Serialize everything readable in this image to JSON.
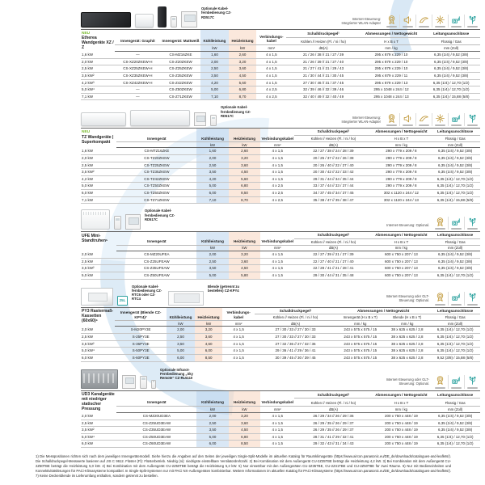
{
  "h": {
    "innengeraet": "Innengerät",
    "innengeraet_graphit": "Innengerät: Graphit",
    "innengeraet_mattweiss": "Innengerät: Mattweiß",
    "innengeraet_blende": "Innengerät (Blende CZ-KPY4)⁷",
    "kuehl": "Kühl­leistung",
    "heiz": "Heiz­leistung",
    "verb": "Verbindungs­kabel",
    "schall": "Schalldruckpegel¹",
    "schall_sub": "Kühlen // Heizen (Fl. / ni / ho)",
    "abmess": "Abmessungen / Nettogewicht",
    "hbt": "H x B x T",
    "abmess_innen": "Innengerät (H x B x T)",
    "abmess_blende": "Blende (H x B x T)",
    "leitung": "Leitungsanschlüsse",
    "fluessig": "Flüssig / Gas",
    "kw": "kW",
    "mm2": "mm²",
    "dba": "dB(A)",
    "mmkg": "mm / kg",
    "mmzoll": "mm (Zoll)"
  },
  "sections": [
    {
      "badge": "NEU",
      "title": "Etherea Wandgeräte XZ / Z",
      "photo_caption": "Optionale Kabel­fernbedienung CZ-RD517C",
      "control_note": "Internet-Steuerung: Integrierter WLAN-Adapter",
      "rows": [
        [
          "1,6 kW",
          "—",
          "CS-MZ16ZKE",
          "1,60",
          "2,60",
          "4 x 1,5",
          "21 / 26 / 38 // 21 / 27 / 39",
          "295 x 879 x 229 / 10",
          "6,35 (1/4) / 9,52 (3/8)"
        ],
        [
          "2,0 kW",
          "CS-XZ20ZKEW-H",
          "CS-Z20ZKEW",
          "2,00",
          "3,20",
          "4 x 1,5",
          "21 / 26 / 39 // 21 / 27 / 40",
          "295 x 879 x 229 / 10",
          "6,35 (1/4) / 9,52 (3/8)"
        ],
        [
          "2,5 kW",
          "CS-XZ25ZKEW-H",
          "CS-Z25ZKEW",
          "2,50",
          "3,60",
          "4 x 1,5",
          "21 / 27 / 41 // 21 / 29 / 43",
          "295 x 879 x 229 / 10",
          "6,35 (1/4) / 9,52 (3/8)"
        ],
        [
          "3,5 kW²",
          "CS-XZ35ZKEW-H",
          "CS-Z35ZKEW",
          "3,50",
          "4,50",
          "4 x 1,5",
          "21 / 30 / 44 // 21 / 30 / 45",
          "295 x 879 x 229 / 11",
          "6,35 (1/4) / 9,52 (3/8)"
        ],
        [
          "4,2 kW³",
          "CS-XZ42ZKEW-H",
          "CS-Z42ZKEW",
          "4,20",
          "5,60",
          "4 x 1,5",
          "27 / 30 / 46 // 31 / 37 / 45",
          "295 x 879 x 229 / 13",
          "6,35 (1/4) / 12,70 (1/2)"
        ],
        [
          "5,0 kW⁴",
          "—",
          "CS-Z50ZKEW",
          "5,00",
          "6,80",
          "4 x 2,5",
          "32 / 39 / 46 // 32 / 39 / 46",
          "295 x 1048 x 244 / 12",
          "6,35 (1/4) / 12,70 (1/2)"
        ],
        [
          "7,1 kW",
          "—",
          "CS-Z71ZKEW",
          "7,10",
          "8,70",
          "4 x 2,5",
          "32 / 40 / 49 // 32 / 40 / 49",
          "295 x 1048 x 244 / 13",
          "6,35 (1/4) / 15,88 (5/8)"
        ]
      ]
    },
    {
      "badge": "NEU",
      "title": "TZ Wandgeräte | Super­kompakt",
      "photo_caption": "Optionale Kabel­fernbedienung CZ-RD517C",
      "control_note": "Internet-Steuerung: Integrierter WLAN-Adapter",
      "rows": [
        [
          "1,6 kW",
          "CS-MTZ16ZKE",
          "1,60",
          "2,60",
          "4 x 1,5",
          "22 / 27 / 38 // 24 / 28 / 39",
          "290 x 779 x 209 / 8",
          "6,35 (1/4) / 9,52 (3/8)"
        ],
        [
          "2,0 kW",
          "CS-TZ20ZKEW",
          "2,00",
          "3,20",
          "4 x 1,5",
          "20 / 25 / 37 // 22 / 26 / 38",
          "290 x 779 x 209 / 8",
          "6,35 (1/4) / 9,52 (3/8)"
        ],
        [
          "2,5 kW",
          "CS-TZ25ZKEW",
          "2,50",
          "3,60",
          "4 x 1,5",
          "20 / 26 / 40 // 22 / 27 / 40",
          "290 x 779 x 209 / 8",
          "6,35 (1/4) / 9,52 (3/8)"
        ],
        [
          "3,5 kW²",
          "CS-TZ35ZKEW",
          "3,50",
          "4,50",
          "4 x 1,5",
          "20 / 30 / 42 // 22 / 33 / 42",
          "290 x 779 x 209 / 8",
          "6,35 (1/4) / 9,52 (3/8)"
        ],
        [
          "4,2 kW",
          "CS-TZ42ZKEW",
          "4,20",
          "5,60",
          "4 x 1,5",
          "29 / 31 / 44 // 34 / 35 / 44",
          "290 x 779 x 209 / 8",
          "6,35 (1/4) / 12,70 (1/2)"
        ],
        [
          "5,0 kW",
          "CS-TZ50ZKEW",
          "5,00",
          "6,80",
          "4 x 2,5",
          "33 / 37 / 44 // 33 / 37 / 44",
          "290 x 779 x 209 / 8",
          "6,35 (1/4) / 12,70 (1/2)"
        ],
        [
          "6,0 kW",
          "CS-TZ60ZKEW",
          "6,00",
          "8,50",
          "4 x 2,5",
          "34 / 37 / 45 // 34 / 37 / 45",
          "302 x 1120 x 244 / 12",
          "6,35 (1/4) / 12,70 (1/2)"
        ],
        [
          "7,1 kW",
          "CS-TZ71ZKEW",
          "7,10",
          "8,70",
          "4 x 2,5",
          "35 / 38 / 47 // 35 / 38 / 47",
          "302 x 1120 x 244 / 13",
          "6,35 (1/4) / 15,88 (5/8)"
        ]
      ]
    },
    {
      "badge": "",
      "title": "UFE Mini-Standtruhen⁵",
      "photo_caption": "Optionale Kabel­fernbedienung CZ-RD517C",
      "control_note": "Internet-Steuerung: Optional.",
      "rows": [
        [
          "2,0 kW",
          "CS-MZ20UFEA",
          "2,00",
          "3,20",
          "4 x 1,5",
          "22 / 27 / 39 // 21 / 27 / 39",
          "600 x 750 x 207 / 13",
          "6,35 (1/4) / 9,52 (3/8)"
        ],
        [
          "2,5 kW",
          "CS-Z25UFEAW",
          "2,50",
          "3,60",
          "4 x 1,5",
          "22 / 27 / 40 // 21 / 27 / 40",
          "600 x 750 x 207 / 13",
          "6,35 (1/4) / 9,52 (3/8)"
        ],
        [
          "3,5 kW²",
          "CS-Z35UFEAW",
          "3,50",
          "4,50",
          "4 x 1,5",
          "22 / 28 / 41 // 21 / 28 / 41",
          "600 x 750 x 207 / 13",
          "6,35 (1/4) / 9,52 (3/8)"
        ],
        [
          "5,0 kW",
          "CS-Z50UFEAW",
          "5,00",
          "5,80",
          "4 x 1,5",
          "29 / 30 / 44 // 31 / 35 / 48",
          "600 x 750 x 207 / 13",
          "6,35 (1/4) / 12,70 (1/2)"
        ]
      ]
    },
    {
      "badge": "",
      "title": "PY3 Rastermaß-Kassetten (60x60)⁶",
      "photo_caption": "Optionale Kabel­fernbedienung CZ-RTC6 oder CZ-RTC4",
      "photo_caption2": "Blende (getrennt zu bestellen) CZ-KPY4",
      "badge_25l": "25L",
      "control_note": "Internet-Steuerung oder GLT-Steuerung: Optional.",
      "rows": [
        [
          "2,0 kW",
          "S-M20PY3E",
          "2,00",
          "3,20",
          "4 x 1,5",
          "27 / 30 / 33 // 27 / 30 / 33",
          "243 x 575 x 575 / 15",
          "38 x 625 x 625 / 2,8",
          "6,35 (1/4) / 12,70 (1/2)"
        ],
        [
          "2,5 kW",
          "S-25PY3E",
          "2,50",
          "3,60",
          "4 x 1,5",
          "27 / 30 / 33 // 27 / 30 / 33",
          "243 x 575 x 575 / 15",
          "38 x 625 x 625 / 2,8",
          "6,35 (1/4) / 12,70 (1/2)"
        ],
        [
          "3,5 kW²",
          "S-36PY3E",
          "3,50",
          "4,60",
          "4 x 1,5",
          "27 / 32 / 36 // 27 / 32 / 36",
          "243 x 575 x 575 / 15",
          "38 x 625 x 625 / 2,8",
          "6,35 (1/4) / 12,70 (1/2)"
        ],
        [
          "5,0 kW⁴",
          "S-50PY3E",
          "5,00",
          "6,00",
          "4 x 1,5",
          "29 / 36 / 41 // 29 / 36 / 41",
          "243 x 575 x 575 / 15",
          "38 x 625 x 625 / 2,8",
          "6,35 (1/4) / 12,70 (1/2)"
        ],
        [
          "6,0 kW",
          "S-60PY3E",
          "6,00",
          "8,50",
          "4 x 1,5",
          "30 / 39 / 45 // 30 / 39 / 45",
          "243 x 575 x 575 / 15",
          "38 x 625 x 625 / 2,8",
          "9,52 (3/8) / 15,88 (5/8)"
        ]
      ]
    },
    {
      "badge": "",
      "title": "UD3 Kanalgeräte mit niedriger statischer Pressung",
      "photo_caption": "Optionale Infrarot-Fernbedienung „Sky Remote“ CZ-RL5110",
      "control_note": "Internet-Steuerung oder GLT-Steuerung: Optional.",
      "rows": [
        [
          "2,0 kW",
          "CS-MZ20UD3EA",
          "2,00",
          "3,20",
          "4 x 1,5",
          "26 / 29 / 34 // 26 / 29 / 36",
          "200 x 750 x 448 / 19",
          "6,35 (1/4) / 9,52 (3/8)"
        ],
        [
          "2,5 kW",
          "CS-Z25UD3EAW",
          "2,50",
          "3,60",
          "4 x 1,5",
          "26 / 29 / 35 // 26 / 29 / 37",
          "200 x 750 x 448 / 19",
          "6,35 (1/4) / 9,52 (3/8)"
        ],
        [
          "3,5 kW²",
          "CS-Z35UD3EAW",
          "3,50",
          "4,50",
          "4 x 1,5",
          "26 / 29 / 35 // 26 / 29 / 37",
          "200 x 750 x 448 / 19",
          "6,35 (1/4) / 9,52 (3/8)"
        ],
        [
          "5,0 kW⁴",
          "CS-Z50UD3EAW",
          "5,00",
          "6,80",
          "4 x 1,5",
          "28 / 31 / 41 // 29 / 32 / 41",
          "200 x 750 x 448 / 19",
          "6,35 (1/4) / 12,70 (1/2)"
        ],
        [
          "6,0 kW",
          "CS-Z60UD3EAW",
          "6,00",
          "8,50",
          "4 x 1,5",
          "29 / 32 / 43 // 31 / 34 / 43",
          "200 x 750 x 448 / 19",
          "6,35 (1/4) / 12,70 (1/2)"
        ]
      ]
    }
  ],
  "footnote": {
    "text": "1) Die Messpositionen richten sich nach dem jeweiligen Innengerätemodell. Siehe hierzu die Angaben auf den Seiten der jeweiligen Single-Split-Modelle im aktuellen Katalog für Raumklimageräte (https://www.aircon.panasonic.eu/DE_de/downloads/catalogues-and-leaflets/). Die Schalldruckpegel-Messwerte basieren auf JIS C 9612. Flüster (Fl): Flüsterbetrieb. Niedrig (ni): niedrigste einstellbare Ventilatordrehzahl. 2) Bei Kombination mit dem Außengerät CU-2Z35TBE beträgt die Heizleistung 4,2 kW. 3) Bei Kombination mit dem Außengerät CU-2Z50TBE beträgt die Heizleistung 5,0 kW. 4) Bei Kombination mit dem Außengerät CU-2Z50TBE beträgt die Heizleistung 5,2 kW. 5) Nur einsetzbar mit den Außengeräten CU-2Z35TBE, CU-2Z41TBE und CU-2Z50TBE für zwei Räume. 6) Nur mit Bedieneinheiten und Konnektivitätslösungen für PACi-Klimasysteme kompatibel. In Single-Split-Systemen nur mit PACi NX-Außengeräten kombinierbar. Weitere Informationen im aktuellen Katalog für PACi-Klimasysteme (https://www.aircon.panasonic.eu/DE_de/downloads/catalogues-and-leaflets/). 7) Keine Deckenblende im Lieferumfang enthalten, sondern getrennt zu bestellen.",
    "accent_green": "#76b82a",
    "accent_gold": "#c19a3d",
    "accent_teal": "#2fa3a0",
    "col_cool_bg": "#bdd6ec",
    "col_heat_bg": "#f9d8c4"
  }
}
